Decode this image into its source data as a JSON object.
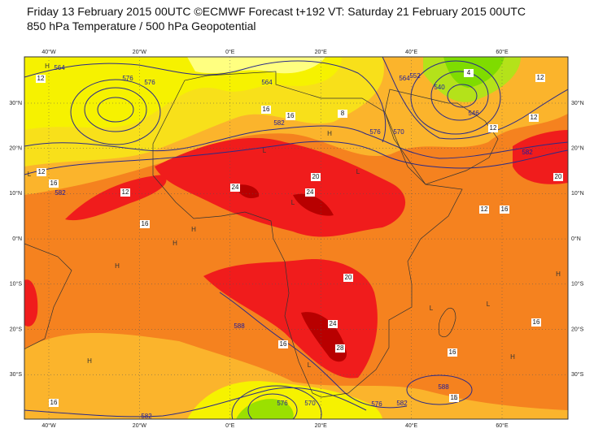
{
  "header": {
    "title": "Friday 13 February 2015 00UTC ©ECMWF Forecast t+192 VT: Saturday 21 February 2015 00UTC",
    "subtitle": "850 hPa Temperature / 500 hPa Geopotential"
  },
  "map": {
    "lon_labels": [
      "40°W",
      "20°W",
      "0°E",
      "20°E",
      "40°E",
      "60°E"
    ],
    "lat_labels": [
      "30°N",
      "20°N",
      "10°N",
      "0°N",
      "10°S",
      "20°S",
      "30°S"
    ],
    "temperature_labels": [
      "12",
      "16",
      "16",
      "8",
      "4",
      "12",
      "12",
      "12",
      "12",
      "16",
      "12",
      "16",
      "24",
      "20",
      "24",
      "12",
      "16",
      "20",
      "20",
      "24",
      "28",
      "16",
      "16",
      "16",
      "16",
      "16"
    ],
    "geopotential_labels": [
      "564",
      "576",
      "576",
      "564",
      "582",
      "576",
      "570",
      "564",
      "552",
      "540",
      "546",
      "582",
      "582",
      "588",
      "576",
      "576",
      "582",
      "588",
      "582",
      "570"
    ],
    "pressure_centers": [
      "H",
      "H",
      "H",
      "H",
      "H",
      "H",
      "H",
      "H",
      "L",
      "L",
      "L",
      "L",
      "L",
      "L",
      "L",
      "L"
    ]
  }
}
